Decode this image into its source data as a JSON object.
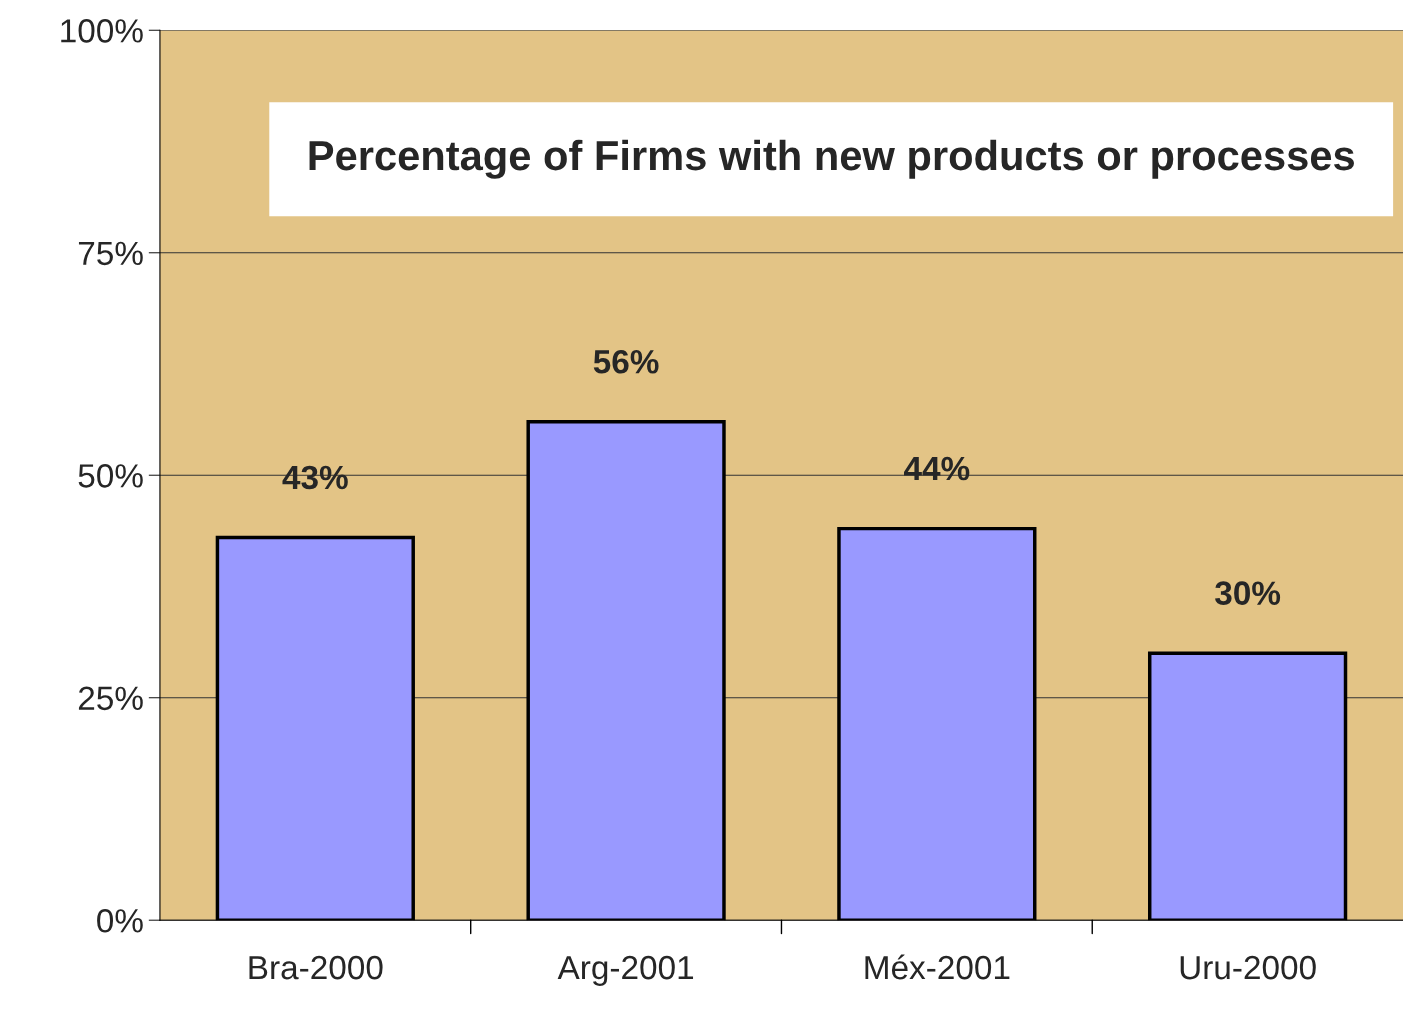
{
  "chart_data": {
    "type": "bar",
    "title": "Percentage of Firms with new products or processes",
    "categories": [
      "Bra-2000",
      "Arg-2001",
      "Méx-2001",
      "Uru-2000"
    ],
    "values": [
      43,
      56,
      44,
      30
    ],
    "value_labels": [
      "43%",
      "56%",
      "44%",
      "30%"
    ],
    "color": "#9999ff",
    "ylim": [
      0,
      100
    ],
    "yticks": [
      {
        "value": 0,
        "label": "0%"
      },
      {
        "value": 25,
        "label": "25%"
      },
      {
        "value": 50,
        "label": "50%"
      },
      {
        "value": 75,
        "label": "75%"
      },
      {
        "value": 100,
        "label": "100%"
      }
    ],
    "grid": "y",
    "legend": false
  }
}
